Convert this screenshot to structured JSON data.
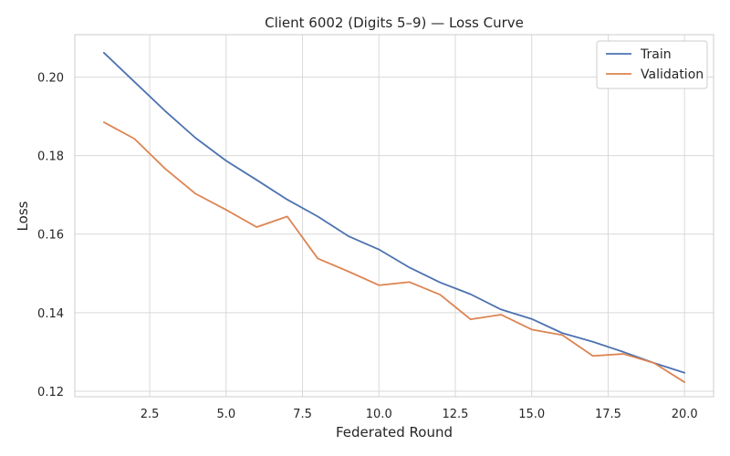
{
  "chart_data": {
    "type": "line",
    "title": "Client 6002 (Digits 5–9) — Loss Curve",
    "xlabel": "Federated Round",
    "ylabel": "Loss",
    "xlim": [
      0.05,
      20.95
    ],
    "ylim": [
      0.1186,
      0.2108
    ],
    "xticks": [
      2.5,
      5.0,
      7.5,
      10.0,
      12.5,
      15.0,
      17.5,
      20.0
    ],
    "xtick_labels": [
      "2.5",
      "5.0",
      "7.5",
      "10.0",
      "12.5",
      "15.0",
      "17.5",
      "20.0"
    ],
    "yticks": [
      0.12,
      0.14,
      0.16,
      0.18,
      0.2
    ],
    "ytick_labels": [
      "0.12",
      "0.14",
      "0.16",
      "0.18",
      "0.20"
    ],
    "grid": true,
    "legend_position": "top-right",
    "x": [
      1,
      2,
      3,
      4,
      5,
      6,
      7,
      8,
      9,
      10,
      11,
      12,
      13,
      14,
      15,
      16,
      17,
      18,
      19,
      20
    ],
    "series": [
      {
        "name": "Train",
        "color": "#4c72b0",
        "values": [
          0.2062,
          0.1988,
          0.1914,
          0.1845,
          0.1787,
          0.1738,
          0.1688,
          0.1645,
          0.1595,
          0.1561,
          0.1515,
          0.1477,
          0.1447,
          0.1408,
          0.1384,
          0.1348,
          0.1326,
          0.13,
          0.1272,
          0.1247
        ]
      },
      {
        "name": "Validation",
        "color": "#dd8452",
        "values": [
          0.1885,
          0.1843,
          0.1767,
          0.1703,
          0.1662,
          0.1618,
          0.1645,
          0.1538,
          0.1505,
          0.147,
          0.1478,
          0.1446,
          0.1383,
          0.1395,
          0.1357,
          0.1343,
          0.129,
          0.1295,
          0.1272,
          0.1223
        ]
      }
    ]
  }
}
